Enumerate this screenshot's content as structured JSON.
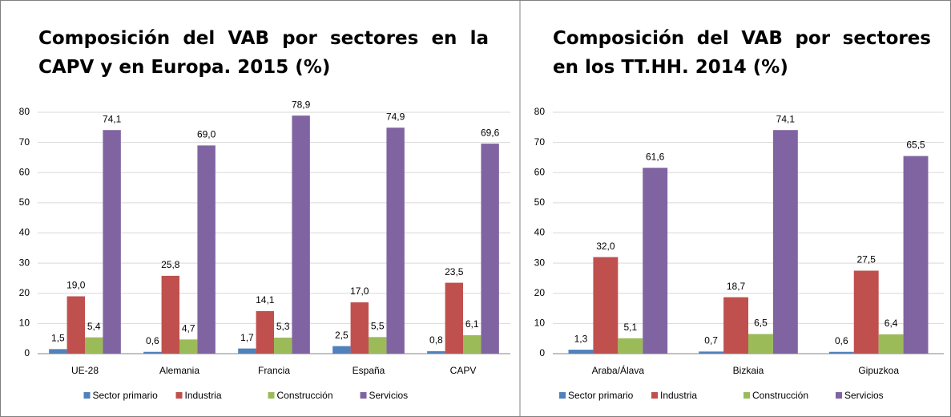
{
  "chart_data": [
    {
      "type": "bar",
      "title": "Composición del VAB por sectores en la CAPV y en Europa. 2015 (%)",
      "categories": [
        "UE-28",
        "Alemania",
        "Francia",
        "España",
        "CAPV"
      ],
      "series": [
        {
          "name": "Sector primario",
          "color": "#4f81bd",
          "values": [
            1.5,
            0.6,
            1.7,
            2.5,
            0.8
          ],
          "value_labels": [
            "1,5",
            "0,6",
            "1,7",
            "2,5",
            "0,8"
          ]
        },
        {
          "name": "Industria",
          "color": "#c0504d",
          "values": [
            19.0,
            25.8,
            14.1,
            17.0,
            23.5
          ],
          "value_labels": [
            "19,0",
            "25,8",
            "14,1",
            "17,0",
            "23,5"
          ]
        },
        {
          "name": "Construcción",
          "color": "#9bbb59",
          "values": [
            5.4,
            4.7,
            5.3,
            5.5,
            6.1
          ],
          "value_labels": [
            "5,4",
            "4,7",
            "5,3",
            "5,5",
            "6,1"
          ]
        },
        {
          "name": "Servicios",
          "color": "#8064a2",
          "values": [
            74.1,
            69.0,
            78.9,
            74.9,
            69.6
          ],
          "value_labels": [
            "74,1",
            "69,0",
            "78,9",
            "74,9",
            "69,6"
          ]
        }
      ],
      "ylim": [
        0,
        80
      ],
      "yticks": [
        0,
        10,
        20,
        30,
        40,
        50,
        60,
        70,
        80
      ],
      "grid": true,
      "legend": "bottom"
    },
    {
      "type": "bar",
      "title": "Composición del VAB por sectores en los TT.HH. 2014 (%)",
      "categories": [
        "Araba/Álava",
        "Bizkaia",
        "Gipuzkoa"
      ],
      "series": [
        {
          "name": "Sector primario",
          "color": "#4f81bd",
          "values": [
            1.3,
            0.7,
            0.6
          ],
          "value_labels": [
            "1,3",
            "0,7",
            "0,6"
          ]
        },
        {
          "name": "Industria",
          "color": "#c0504d",
          "values": [
            32.0,
            18.7,
            27.5
          ],
          "value_labels": [
            "32,0",
            "18,7",
            "27,5"
          ]
        },
        {
          "name": "Construcción",
          "color": "#9bbb59",
          "values": [
            5.1,
            6.5,
            6.4
          ],
          "value_labels": [
            "5,1",
            "6,5",
            "6,4"
          ]
        },
        {
          "name": "Servicios",
          "color": "#8064a2",
          "values": [
            61.6,
            74.1,
            65.5
          ],
          "value_labels": [
            "61,6",
            "74,1",
            "65,5"
          ]
        }
      ],
      "ylim": [
        0,
        80
      ],
      "yticks": [
        0,
        10,
        20,
        30,
        40,
        50,
        60,
        70,
        80
      ],
      "grid": true,
      "legend": "bottom"
    }
  ]
}
